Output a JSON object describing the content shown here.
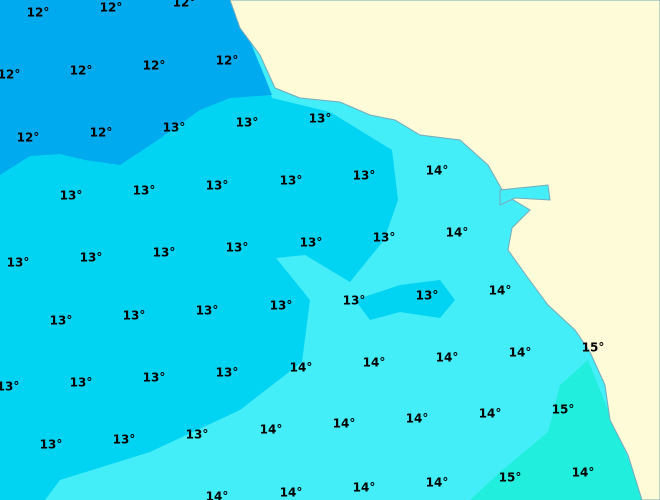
{
  "labels": [
    "12°",
    "12°",
    "12°",
    "12°",
    "12°",
    "12°",
    "12°",
    "12°",
    "12°",
    "13°",
    "13°",
    "13°",
    "14°",
    "13°",
    "13°",
    "13°",
    "13°",
    "13°",
    "13°",
    "13°",
    "13°",
    "13°",
    "13°",
    "13°",
    "14°",
    "13°",
    "13°",
    "13°",
    "13°",
    "13°",
    "13°",
    "14°",
    "15°",
    "13°",
    "13°",
    "13°",
    "13°",
    "14°",
    "14°",
    "14°",
    "14°",
    "15°",
    "14°",
    "14°",
    "14°",
    "14°",
    "13°",
    "13°",
    "13°",
    "14°",
    "15°",
    "14°",
    "14°",
    "14°",
    "14°"
  ]
}
